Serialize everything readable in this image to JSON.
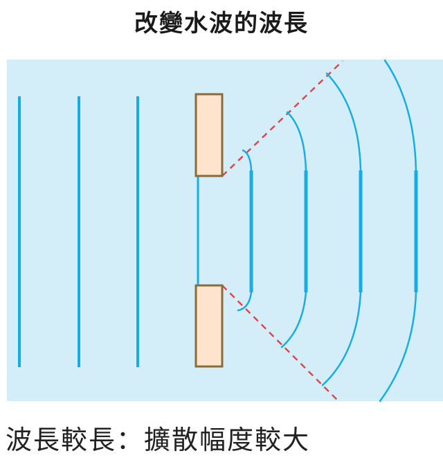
{
  "title": "改變水波的波長",
  "caption": "波長較長：擴散幅度較大",
  "colors": {
    "water": "#d4eef9",
    "wave": "#16ace6",
    "barrier_fill": "#fee4cc",
    "barrier_stroke": "#8a6a3a",
    "guide_line": "#e0454c"
  }
}
